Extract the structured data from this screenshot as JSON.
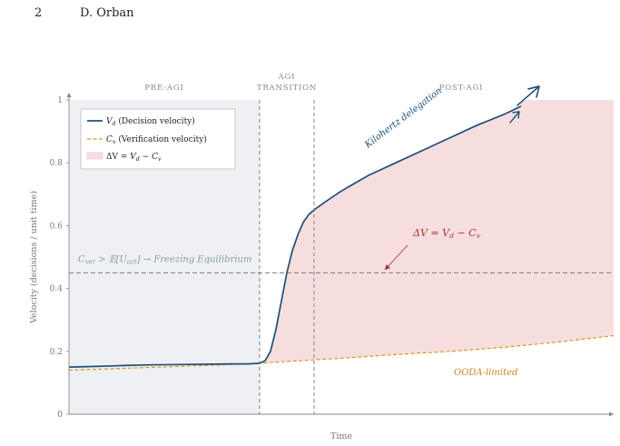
{
  "header": {
    "page_number": "2",
    "author": "D. Orban"
  },
  "colors": {
    "decision": "#1f4e79",
    "verification": "#d9962b",
    "gap_fill": "#f7dede",
    "pre_agi_fill": "#eef0f3",
    "threshold": "#5e6b75"
  },
  "chart_data": {
    "type": "line",
    "xlabel": "Time",
    "ylabel": "Velocity (decisions / unit time)",
    "xlim": [
      0,
      10
    ],
    "ylim": [
      0,
      1
    ],
    "yticks": [
      "0",
      "0.2",
      "0.4",
      "0.6",
      "0.8",
      "1"
    ],
    "ytick_values": [
      0,
      0.2,
      0.4,
      0.6,
      0.8,
      1
    ],
    "grid": false,
    "legend_position": "top-left",
    "phases": [
      {
        "label_lines": [
          "PRE-AGI"
        ],
        "x_center": 1.75
      },
      {
        "label_lines": [
          "AGI",
          "TRANSITION"
        ],
        "x_center": 4.0
      },
      {
        "label_lines": [
          "POST-AGI"
        ],
        "x_center": 7.2
      }
    ],
    "phase_boundaries": [
      3.5,
      4.5
    ],
    "threshold": {
      "y": 0.45,
      "label": "C_ver > 𝔼[U_act] → Freezing Equilibrium"
    },
    "series": [
      {
        "name": "V_d (Decision velocity)",
        "style": "solid",
        "x": [
          0,
          0.5,
          1,
          1.5,
          2,
          2.5,
          3,
          3.3,
          3.5,
          3.6,
          3.7,
          3.8,
          3.9,
          4.0,
          4.1,
          4.2,
          4.3,
          4.4,
          4.5,
          4.7,
          5.0,
          5.5,
          6.0,
          6.5,
          7.0,
          7.5,
          8.0,
          8.3
        ],
        "y": [
          0.15,
          0.152,
          0.155,
          0.157,
          0.158,
          0.159,
          0.16,
          0.16,
          0.162,
          0.17,
          0.2,
          0.27,
          0.36,
          0.45,
          0.52,
          0.57,
          0.61,
          0.635,
          0.65,
          0.675,
          0.71,
          0.76,
          0.8,
          0.84,
          0.88,
          0.92,
          0.955,
          0.98
        ]
      },
      {
        "name": "C_v (Verification velocity)",
        "style": "dashed",
        "x": [
          0,
          1,
          2,
          3,
          3.5,
          4,
          5,
          6,
          7,
          8,
          9,
          10
        ],
        "y": [
          0.14,
          0.146,
          0.152,
          0.158,
          0.162,
          0.168,
          0.178,
          0.19,
          0.2,
          0.213,
          0.23,
          0.25
        ]
      }
    ],
    "legend_labels": {
      "decision": "V_d (Decision velocity)",
      "verification": "C_v (Verification velocity)",
      "gap": "ΔV = V_d − C_v"
    },
    "annotations": {
      "kilohertz": "Kilohertz delegation",
      "gap": "ΔV = V_d − C_v",
      "ooda": "OODA-limited"
    }
  }
}
